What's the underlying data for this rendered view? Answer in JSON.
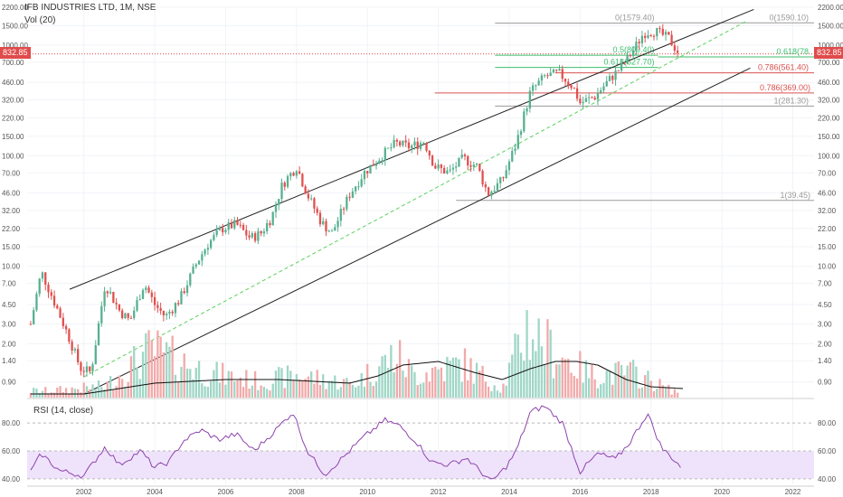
{
  "header": {
    "title": "IFB INDUSTRIES LTD, 1M, NSE",
    "vol_label": "Vol (20)",
    "rsi_label": "RSI (14, close)"
  },
  "price_tag": {
    "value": "832.85",
    "color": "#e04b4b"
  },
  "colors": {
    "up": "#57b08f",
    "down": "#e0504f",
    "vol_up": "#9fd6c6",
    "vol_down": "#f2a9a9",
    "channel": "#222222",
    "mid_line": "#5bd15b",
    "fib_green": "#3cbf6e",
    "fib_red": "#d9534f",
    "fib_gray": "#9a9a9a",
    "rsi_line": "#8e44ad",
    "rsi_band": "#efe3fb"
  },
  "chart_data": {
    "type": "candlestick",
    "y_scale": "log",
    "ylim": [
      0.65,
      2200
    ],
    "xlim": [
      2000.4,
      2022.6
    ],
    "y_ticks": [
      2200.0,
      1500.0,
      1000.0,
      700.0,
      460.0,
      320.0,
      220.0,
      150.0,
      100.0,
      70.0,
      46.0,
      32.0,
      22.0,
      15.0,
      10.0,
      7.0,
      4.5,
      3.0,
      2.0,
      1.4,
      0.9
    ],
    "x_ticks": [
      "2002",
      "2004",
      "2006",
      "2008",
      "2010",
      "2012",
      "2014",
      "2016",
      "2018",
      "2020",
      "2022"
    ],
    "anchors": [
      [
        2000.5,
        3.0
      ],
      [
        2000.8,
        9.0
      ],
      [
        2001.2,
        4.5
      ],
      [
        2001.6,
        2.2
      ],
      [
        2001.9,
        1.2
      ],
      [
        2002.2,
        1.1
      ],
      [
        2002.6,
        7.0
      ],
      [
        2003.0,
        4.0
      ],
      [
        2003.3,
        3.2
      ],
      [
        2003.7,
        7.0
      ],
      [
        2004.0,
        4.5
      ],
      [
        2004.3,
        3.5
      ],
      [
        2004.7,
        5.0
      ],
      [
        2005.2,
        11.0
      ],
      [
        2005.5,
        16.0
      ],
      [
        2005.9,
        22.0
      ],
      [
        2006.3,
        24.0
      ],
      [
        2006.7,
        18.0
      ],
      [
        2007.0,
        20.0
      ],
      [
        2007.3,
        28.0
      ],
      [
        2007.6,
        55.0
      ],
      [
        2008.0,
        80.0
      ],
      [
        2008.3,
        45.0
      ],
      [
        2008.7,
        25.0
      ],
      [
        2009.0,
        20.0
      ],
      [
        2009.5,
        45.0
      ],
      [
        2009.9,
        70.0
      ],
      [
        2010.4,
        100.0
      ],
      [
        2010.8,
        130.0
      ],
      [
        2011.2,
        120.0
      ],
      [
        2011.6,
        135.0
      ],
      [
        2011.9,
        80.0
      ],
      [
        2012.3,
        70.0
      ],
      [
        2012.7,
        95.0
      ],
      [
        2013.1,
        80.0
      ],
      [
        2013.4,
        45.0
      ],
      [
        2013.8,
        60.0
      ],
      [
        2014.2,
        130.0
      ],
      [
        2014.6,
        380.0
      ],
      [
        2015.0,
        520.0
      ],
      [
        2015.4,
        560.0
      ],
      [
        2015.8,
        420.0
      ],
      [
        2016.0,
        300.0
      ],
      [
        2016.4,
        340.0
      ],
      [
        2016.9,
        520.0
      ],
      [
        2017.2,
        650.0
      ],
      [
        2017.5,
        900.0
      ],
      [
        2017.8,
        1300.0
      ],
      [
        2018.1,
        1350.0
      ],
      [
        2018.5,
        1150.0
      ],
      [
        2018.8,
        833.0
      ]
    ],
    "volume_hi": [
      [
        2001.0,
        0.06
      ],
      [
        2002.6,
        0.1
      ],
      [
        2003.9,
        0.42
      ],
      [
        2005.5,
        0.22
      ],
      [
        2007.0,
        0.14
      ],
      [
        2008.0,
        0.2
      ],
      [
        2009.6,
        0.12
      ],
      [
        2010.8,
        0.38
      ],
      [
        2011.3,
        0.2
      ],
      [
        2012.7,
        0.3
      ],
      [
        2013.8,
        0.08
      ],
      [
        2014.5,
        0.62
      ],
      [
        2015.2,
        0.42
      ],
      [
        2016.3,
        0.2
      ],
      [
        2017.5,
        0.22
      ],
      [
        2018.6,
        0.06
      ]
    ],
    "vol_ma": [
      [
        2000.5,
        0.02
      ],
      [
        2002.0,
        0.02
      ],
      [
        2004.0,
        0.08
      ],
      [
        2006.0,
        0.1
      ],
      [
        2007.5,
        0.1
      ],
      [
        2008.5,
        0.09
      ],
      [
        2009.5,
        0.08
      ],
      [
        2010.3,
        0.12
      ],
      [
        2011.0,
        0.18
      ],
      [
        2012.0,
        0.2
      ],
      [
        2013.0,
        0.14
      ],
      [
        2013.8,
        0.1
      ],
      [
        2014.6,
        0.16
      ],
      [
        2015.3,
        0.2
      ],
      [
        2015.9,
        0.2
      ],
      [
        2016.5,
        0.18
      ],
      [
        2017.3,
        0.1
      ],
      [
        2018.0,
        0.06
      ],
      [
        2018.9,
        0.05
      ]
    ],
    "rsi": {
      "ylim": [
        36,
        93
      ],
      "y_ticks": [
        80.0,
        60.0,
        40.0
      ],
      "band": [
        40,
        60
      ],
      "values": [
        [
          2000.5,
          45
        ],
        [
          2000.8,
          58
        ],
        [
          2001.3,
          46
        ],
        [
          2002.0,
          42
        ],
        [
          2002.6,
          63
        ],
        [
          2003.0,
          50
        ],
        [
          2003.6,
          60
        ],
        [
          2004.0,
          48
        ],
        [
          2004.4,
          52
        ],
        [
          2004.8,
          67
        ],
        [
          2005.3,
          75
        ],
        [
          2005.8,
          68
        ],
        [
          2006.3,
          72
        ],
        [
          2006.8,
          60
        ],
        [
          2007.3,
          72
        ],
        [
          2007.9,
          88
        ],
        [
          2008.3,
          60
        ],
        [
          2008.8,
          43
        ],
        [
          2009.3,
          55
        ],
        [
          2009.9,
          70
        ],
        [
          2010.5,
          82
        ],
        [
          2010.9,
          78
        ],
        [
          2011.4,
          66
        ],
        [
          2011.8,
          52
        ],
        [
          2012.3,
          50
        ],
        [
          2012.8,
          55
        ],
        [
          2013.2,
          45
        ],
        [
          2013.5,
          38
        ],
        [
          2013.9,
          48
        ],
        [
          2014.2,
          60
        ],
        [
          2014.6,
          88
        ],
        [
          2015.0,
          92
        ],
        [
          2015.5,
          80
        ],
        [
          2016.0,
          45
        ],
        [
          2016.5,
          58
        ],
        [
          2017.0,
          54
        ],
        [
          2017.4,
          66
        ],
        [
          2017.9,
          87
        ],
        [
          2018.3,
          62
        ],
        [
          2018.6,
          55
        ],
        [
          2018.9,
          47
        ]
      ]
    },
    "fib_levels": [
      {
        "label": "0(1579.40)",
        "value": 1579.4,
        "x1": 2013.6,
        "x2": 2018.2,
        "side": "left",
        "color": "fib_gray"
      },
      {
        "label": "0(1590.10)",
        "value": 1590.1,
        "x1": 2018.2,
        "x2": 2022.6,
        "side": "right",
        "color": "fib_gray"
      },
      {
        "label": "0.5(809.40)",
        "value": 809.4,
        "x1": 2013.6,
        "x2": 2018.2,
        "side": "left",
        "color": "fib_green"
      },
      {
        "label": "0.618(627.70)",
        "value": 627.7,
        "x1": 2013.6,
        "x2": 2018.2,
        "side": "left",
        "color": "fib_green"
      },
      {
        "label": "0.618(78",
        "value": 782,
        "x1": 2018.2,
        "x2": 2022.6,
        "side": "right",
        "color": "fib_green"
      },
      {
        "label": "0.786(561.40)",
        "value": 561.4,
        "x1": 2015.3,
        "x2": 2022.6,
        "side": "right",
        "color": "fib_red"
      },
      {
        "label": "0.786(369.00)",
        "value": 369.0,
        "x1": 2011.9,
        "x2": 2022.6,
        "side": "left",
        "color": "fib_red"
      },
      {
        "label": "1(281.30)",
        "value": 281.3,
        "x1": 2013.6,
        "x2": 2022.6,
        "side": "right",
        "color": "fib_gray"
      },
      {
        "label": "1(39.45)",
        "value": 39.45,
        "x1": 2012.5,
        "x2": 2022.6,
        "side": "left",
        "color": "fib_gray"
      }
    ],
    "channel": {
      "upper": [
        [
          2001.6,
          6.2
        ],
        [
          2020.9,
          2100
        ]
      ],
      "lower": [
        [
          2002.0,
          0.7
        ],
        [
          2020.8,
          620
        ]
      ],
      "mid": [
        [
          2002.0,
          1.0
        ],
        [
          2020.7,
          1650
        ]
      ]
    }
  }
}
